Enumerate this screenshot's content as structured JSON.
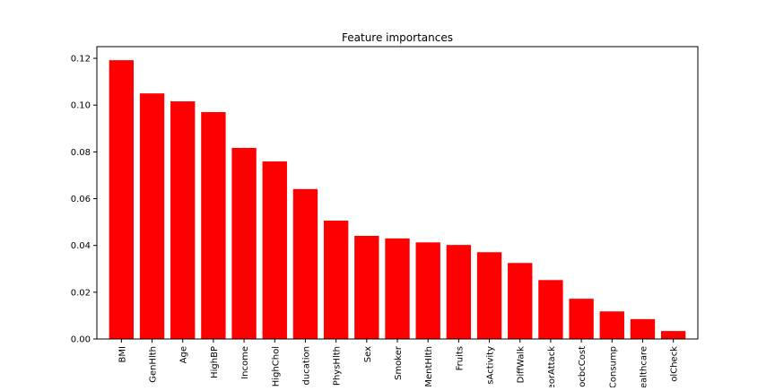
{
  "chart_data": {
    "type": "bar",
    "title": "Feature importances",
    "xlabel": "",
    "ylabel": "",
    "ylim": [
      0,
      0.125
    ],
    "yticks": [
      "0.00",
      "0.02",
      "0.04",
      "0.06",
      "0.08",
      "0.10",
      "0.12"
    ],
    "ytick_values": [
      0.0,
      0.02,
      0.04,
      0.06,
      0.08,
      0.1,
      0.12
    ],
    "categories": [
      "BMI",
      "GenHlth",
      "Age",
      "HighBP",
      "Income",
      "HighChol",
      "Education",
      "PhysHlth",
      "Sex",
      "Smoker",
      "MentHlth",
      "Fruits",
      "PhysActivity",
      "DiffWalk",
      "HeartDiseaseorAttack",
      "NoDocbcCost",
      "HvyAlcoholConsump",
      "AnyHealthcare",
      "CholCheck"
    ],
    "tick_labels": [
      "BMI",
      "GenHlth",
      "Age",
      "HighBP",
      "Income",
      "HighChol",
      "ducation",
      "PhysHlth",
      "Sex",
      "Smoker",
      "MentHlth",
      "Fruits",
      "sActivity",
      "DiffWalk",
      "eorAttack",
      "ocbcCost",
      "Consump",
      "ealthcare",
      "olCheck"
    ],
    "values": [
      0.1192,
      0.105,
      0.1016,
      0.097,
      0.0817,
      0.0759,
      0.0641,
      0.0506,
      0.0441,
      0.043,
      0.0413,
      0.0402,
      0.0371,
      0.0325,
      0.0252,
      0.0172,
      0.0118,
      0.0085,
      0.0034
    ],
    "bar_color": "#ff0000",
    "grid": false,
    "legend": "none"
  }
}
